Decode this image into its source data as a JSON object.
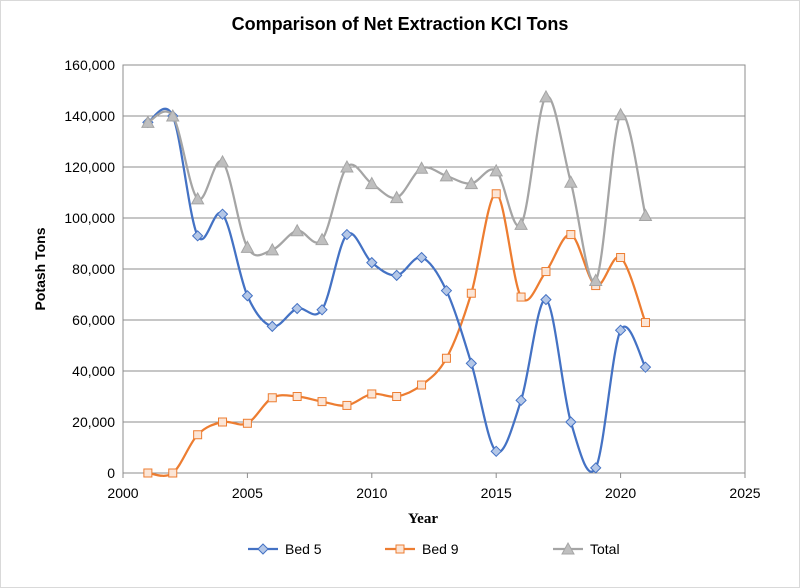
{
  "chart_data": {
    "type": "line",
    "smooth": true,
    "title": "Comparison of Net Extraction KCl Tons",
    "xlabel": "Year",
    "ylabel": "Potash Tons",
    "xlim": [
      2000,
      2025
    ],
    "ylim": [
      0,
      160000
    ],
    "xticks": [
      2000,
      2005,
      2010,
      2015,
      2020,
      2025
    ],
    "yticks": [
      0,
      20000,
      40000,
      60000,
      80000,
      100000,
      120000,
      140000,
      160000
    ],
    "ytick_labels": [
      "0",
      "20,000",
      "40,000",
      "60,000",
      "80,000",
      "100,000",
      "120,000",
      "140,000",
      "160,000"
    ],
    "grid": "horizontal",
    "legend_position": "bottom",
    "x": [
      2001,
      2002,
      2003,
      2004,
      2005,
      2006,
      2007,
      2008,
      2009,
      2010,
      2011,
      2012,
      2013,
      2014,
      2015,
      2016,
      2017,
      2018,
      2019,
      2020,
      2021
    ],
    "series": [
      {
        "name": "Bed 5",
        "color": "#4472c4",
        "marker": "diamond",
        "values": [
          137500,
          140000,
          93000,
          101500,
          69500,
          57500,
          64500,
          64000,
          93500,
          82500,
          77500,
          84500,
          71500,
          43000,
          8500,
          28500,
          68000,
          20000,
          2000,
          56000,
          41500
        ]
      },
      {
        "name": "Bed 9",
        "color": "#ed7d31",
        "marker": "square",
        "values": [
          0,
          0,
          15000,
          20000,
          19500,
          29500,
          30000,
          28000,
          26500,
          31000,
          30000,
          34500,
          45000,
          70500,
          109500,
          69000,
          79000,
          93500,
          73500,
          84500,
          59000
        ]
      },
      {
        "name": "Total",
        "color": "#a5a5a5",
        "marker": "triangle",
        "values": [
          137500,
          140000,
          107500,
          122000,
          88500,
          87500,
          95000,
          91500,
          120000,
          113500,
          108000,
          119500,
          116500,
          113500,
          118500,
          97500,
          147500,
          114000,
          75500,
          140500,
          101000
        ]
      }
    ]
  }
}
